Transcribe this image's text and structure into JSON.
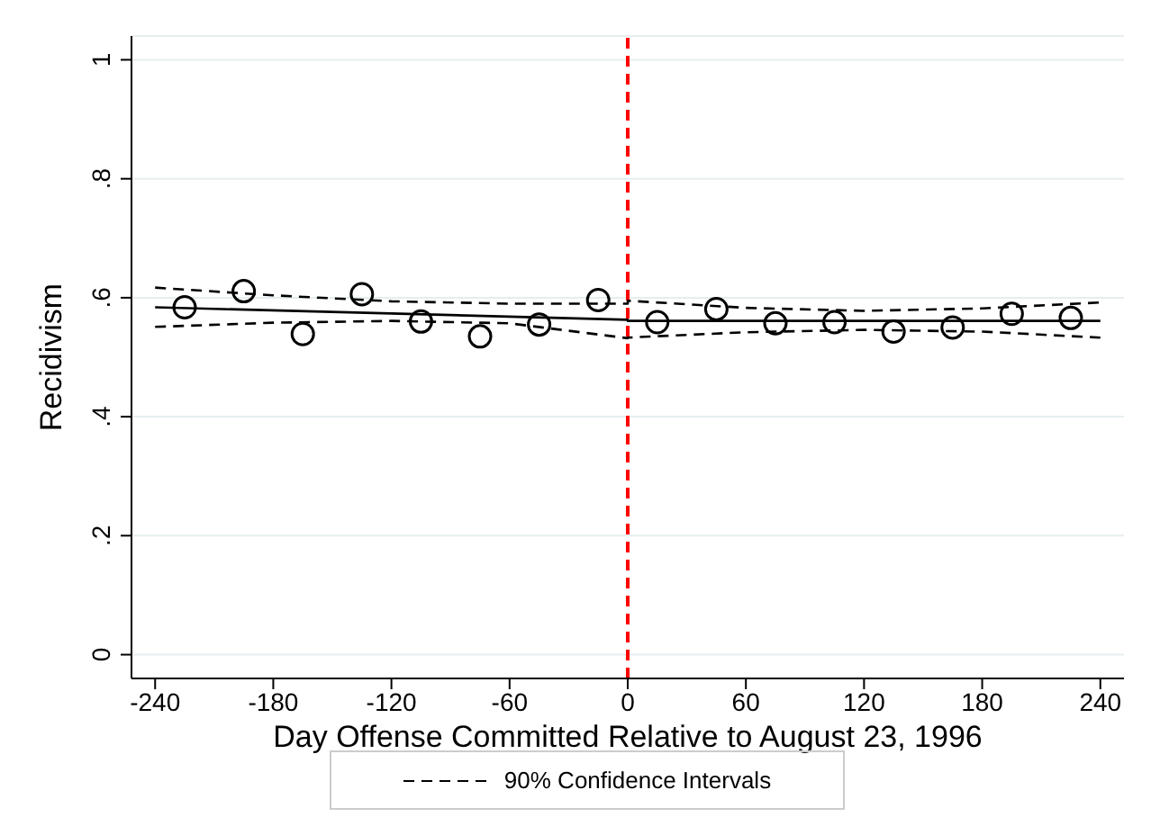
{
  "chart_data": {
    "type": "scatter",
    "xlabel": "Day Offense Committed Relative to August 23, 1996",
    "ylabel": "Recidivism",
    "xlim": [
      -252,
      252
    ],
    "ylim": [
      -0.04,
      1.04
    ],
    "xticks": [
      -240,
      -180,
      -120,
      -60,
      0,
      60,
      120,
      180,
      240
    ],
    "yticks": [
      0,
      {
        "value": 0.2,
        "label": ".2"
      },
      {
        "value": 0.4,
        "label": ".4"
      },
      {
        "value": 0.6,
        "label": ".6"
      },
      {
        "value": 0.8,
        "label": ".8"
      },
      1
    ],
    "grid": "y",
    "legend": "bottom",
    "ref_lines": [
      {
        "axis": "x",
        "value": 0,
        "color": "#ff0000",
        "line_style": "dashed"
      }
    ],
    "series": [
      {
        "color": "#000000",
        "marker": "circle",
        "x": [
          -225,
          -195,
          -165,
          -135,
          -105,
          -75,
          -45,
          -15,
          15,
          45,
          75,
          105,
          135,
          165,
          195,
          225
        ],
        "values": [
          0.584,
          0.611,
          0.539,
          0.606,
          0.56,
          0.535,
          0.555,
          0.596,
          0.559,
          0.581,
          0.557,
          0.559,
          0.543,
          0.55,
          0.573,
          0.566
        ]
      },
      {
        "type": "line",
        "color": "#000000",
        "line_style": "solid",
        "marker": "none",
        "x": [
          -240,
          0,
          0,
          240
        ],
        "values": [
          0.584,
          0.563,
          0.561,
          0.561
        ]
      },
      {
        "type": "line",
        "name": "90% Confidence Intervals",
        "color": "#000000",
        "line_style": "dashed",
        "marker": "none",
        "x": [
          -240,
          -180,
          -120,
          -60,
          0,
          0,
          60,
          120,
          180,
          240
        ],
        "values": [
          0.617,
          0.604,
          0.594,
          0.59,
          0.59,
          0.595,
          0.583,
          0.578,
          0.582,
          0.592
        ]
      },
      {
        "type": "line",
        "color": "#000000",
        "line_style": "dashed",
        "marker": "none",
        "x": [
          -240,
          -180,
          -120,
          -60,
          0,
          0,
          60,
          120,
          180,
          240
        ],
        "values": [
          0.551,
          0.558,
          0.561,
          0.557,
          0.532,
          0.533,
          0.542,
          0.546,
          0.543,
          0.533
        ]
      }
    ]
  }
}
